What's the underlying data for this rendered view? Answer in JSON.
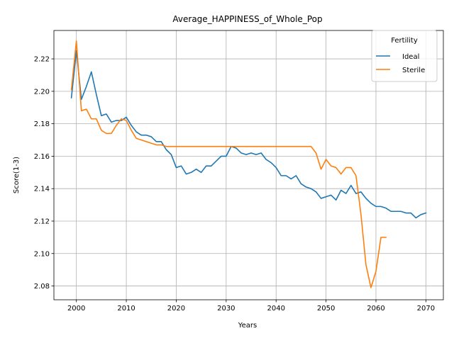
{
  "chart_data": {
    "type": "line",
    "title": "Average_HAPPINESS_of_Whole_Pop",
    "xlabel": "Years",
    "ylabel": "Score(1-3)",
    "xlim": [
      1995.5,
      2073.5
    ],
    "ylim": [
      2.0715,
      2.2375
    ],
    "xticks": [
      2000,
      2010,
      2020,
      2030,
      2040,
      2050,
      2060,
      2070
    ],
    "yticks": [
      2.08,
      2.1,
      2.12,
      2.14,
      2.16,
      2.18,
      2.2,
      2.22
    ],
    "grid": true,
    "legend": {
      "title": "Fertility",
      "placement": "top-right"
    },
    "series": [
      {
        "name": "Ideal",
        "color": "#1f77b4",
        "x": [
          1999,
          2000,
          2001,
          2002,
          2003,
          2004,
          2005,
          2006,
          2007,
          2008,
          2009,
          2010,
          2011,
          2012,
          2013,
          2014,
          2015,
          2016,
          2017,
          2018,
          2019,
          2020,
          2021,
          2022,
          2023,
          2024,
          2025,
          2026,
          2027,
          2028,
          2029,
          2030,
          2031,
          2032,
          2033,
          2034,
          2035,
          2036,
          2037,
          2038,
          2039,
          2040,
          2041,
          2042,
          2043,
          2044,
          2045,
          2046,
          2047,
          2048,
          2049,
          2050,
          2051,
          2052,
          2053,
          2054,
          2055,
          2056,
          2057,
          2058,
          2059,
          2060,
          2061,
          2062,
          2063,
          2064,
          2065,
          2066,
          2067,
          2068,
          2069,
          2070
        ],
        "y": [
          2.196,
          2.225,
          2.195,
          2.203,
          2.212,
          2.198,
          2.185,
          2.186,
          2.181,
          2.182,
          2.182,
          2.184,
          2.179,
          2.175,
          2.173,
          2.173,
          2.172,
          2.169,
          2.169,
          2.164,
          2.161,
          2.153,
          2.154,
          2.149,
          2.15,
          2.152,
          2.15,
          2.154,
          2.154,
          2.157,
          2.16,
          2.16,
          2.166,
          2.165,
          2.162,
          2.161,
          2.162,
          2.161,
          2.162,
          2.158,
          2.156,
          2.153,
          2.148,
          2.148,
          2.146,
          2.148,
          2.143,
          2.141,
          2.14,
          2.138,
          2.134,
          2.135,
          2.136,
          2.133,
          2.139,
          2.137,
          2.142,
          2.137,
          2.138,
          2.134,
          2.131,
          2.129,
          2.129,
          2.128,
          2.126,
          2.126,
          2.126,
          2.125,
          2.125,
          2.122,
          2.124,
          2.125
        ]
      },
      {
        "name": "Sterile",
        "color": "#ff7f0e",
        "x": [
          1999,
          2000,
          2001,
          2002,
          2003,
          2004,
          2005,
          2006,
          2007,
          2008,
          2009,
          2010,
          2011,
          2012,
          2013,
          2014,
          2015,
          2016,
          2017,
          2018,
          2019,
          2020,
          2025,
          2030,
          2035,
          2040,
          2045,
          2046,
          2047,
          2048,
          2049,
          2050,
          2051,
          2052,
          2053,
          2054,
          2055,
          2056,
          2057,
          2058,
          2059,
          2060,
          2061,
          2062
        ],
        "y": [
          2.201,
          2.231,
          2.188,
          2.189,
          2.183,
          2.183,
          2.176,
          2.174,
          2.174,
          2.179,
          2.183,
          2.182,
          2.176,
          2.171,
          2.17,
          2.169,
          2.168,
          2.167,
          2.167,
          2.166,
          2.166,
          2.166,
          2.166,
          2.166,
          2.166,
          2.166,
          2.166,
          2.166,
          2.166,
          2.162,
          2.152,
          2.158,
          2.154,
          2.153,
          2.149,
          2.153,
          2.153,
          2.148,
          2.124,
          2.093,
          2.079,
          2.089,
          2.11,
          2.11
        ]
      }
    ]
  }
}
